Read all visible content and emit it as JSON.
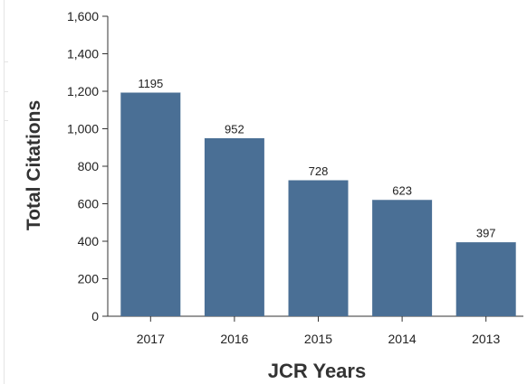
{
  "chart_data": {
    "type": "bar",
    "categories": [
      "2017",
      "2016",
      "2015",
      "2014",
      "2013"
    ],
    "values": [
      1195,
      952,
      728,
      623,
      397
    ],
    "data_labels": [
      "1195",
      "952",
      "728",
      "623",
      "397"
    ],
    "title": "",
    "xlabel": "JCR Years",
    "ylabel": "Total Citations",
    "ylim": [
      0,
      1600
    ],
    "yticks": [
      0,
      200,
      400,
      600,
      800,
      1000,
      1200,
      1400,
      1600
    ],
    "ytick_labels": [
      "0",
      "200",
      "400",
      "600",
      "800",
      "1,000",
      "1,200",
      "1,400",
      "1,600"
    ],
    "grid": false,
    "legend": "none",
    "bar_color": "#4a6f95"
  }
}
